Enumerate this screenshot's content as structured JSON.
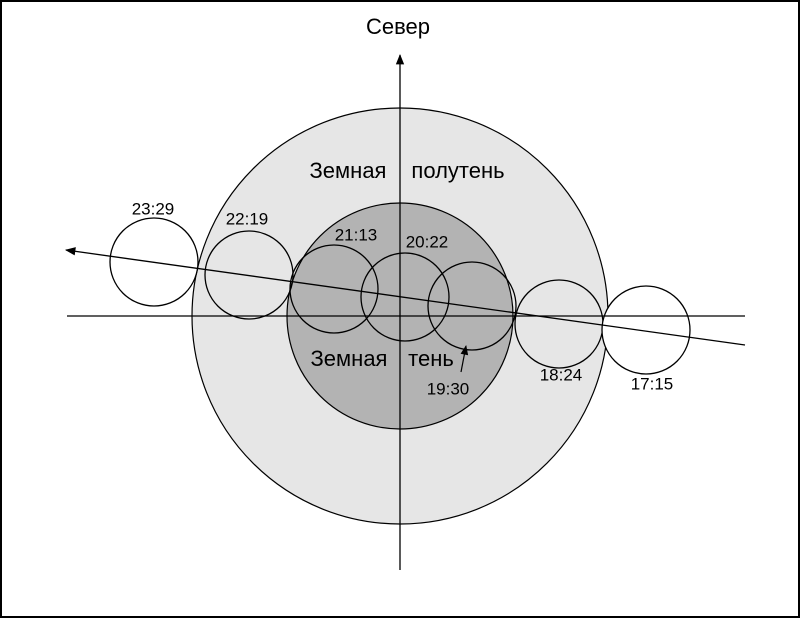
{
  "north_label": "Север",
  "penumbra_label": [
    "Земная",
    "полутень"
  ],
  "umbra_label": [
    "Земная",
    "тень"
  ],
  "moon_times": [
    "23:29",
    "22:19",
    "21:13",
    "20:22",
    "19:30",
    "18:24",
    "17:15"
  ]
}
